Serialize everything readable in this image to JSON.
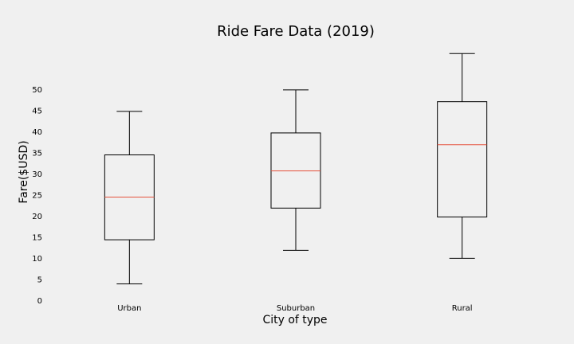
{
  "chart_data": {
    "type": "box",
    "title": "Ride Fare Data (2019)",
    "x_label": "City of type",
    "y_label": "Fare($USD)",
    "categories": [
      "Urban",
      "Suburban",
      "Rural"
    ],
    "boxes": [
      {
        "whislo": 4.05,
        "q1": 14.5,
        "med": 24.6,
        "q3": 34.6,
        "whishi": 44.9
      },
      {
        "whislo": 12.0,
        "q1": 22.0,
        "med": 30.8,
        "q3": 39.8,
        "whishi": 50.0
      },
      {
        "whislo": 10.1,
        "q1": 19.9,
        "med": 37.0,
        "q3": 47.2,
        "whishi": 58.6
      }
    ],
    "box_color": "#000000",
    "median_color": "#e5533d",
    "ylim": [
      0,
      60
    ],
    "yticks": [
      0,
      5,
      10,
      15,
      20,
      25,
      30,
      35,
      40,
      45,
      50
    ],
    "grid": false
  }
}
